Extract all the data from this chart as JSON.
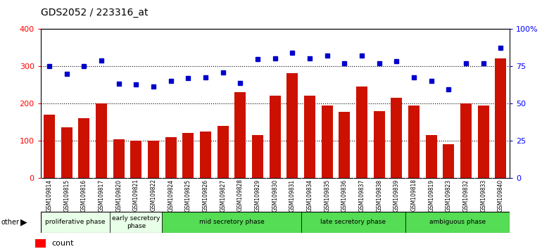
{
  "title": "GDS2052 / 223316_at",
  "samples": [
    "GSM109814",
    "GSM109815",
    "GSM109816",
    "GSM109817",
    "GSM109820",
    "GSM109821",
    "GSM109822",
    "GSM109824",
    "GSM109825",
    "GSM109826",
    "GSM109827",
    "GSM109828",
    "GSM109829",
    "GSM109830",
    "GSM109831",
    "GSM109834",
    "GSM109835",
    "GSM109836",
    "GSM109837",
    "GSM109838",
    "GSM109839",
    "GSM109818",
    "GSM109819",
    "GSM109823",
    "GSM109832",
    "GSM109833",
    "GSM109840"
  ],
  "counts": [
    170,
    135,
    160,
    200,
    103,
    100,
    100,
    110,
    120,
    125,
    140,
    230,
    115,
    220,
    280,
    220,
    195,
    178,
    245,
    180,
    215,
    195,
    115,
    90,
    200,
    195,
    320
  ],
  "percentiles": [
    300,
    278,
    300,
    315,
    252,
    250,
    245,
    260,
    267,
    270,
    283,
    255,
    318,
    320,
    335,
    320,
    327,
    308,
    328,
    308,
    312,
    270,
    260,
    237,
    308,
    308,
    348
  ],
  "phases": [
    {
      "label": "proliferative phase",
      "start": 0,
      "end": 4,
      "color": "#e8ffe8"
    },
    {
      "label": "early secretory\nphase",
      "start": 4,
      "end": 7,
      "color": "#e8ffe8"
    },
    {
      "label": "mid secretory phase",
      "start": 7,
      "end": 15,
      "color": "#55dd55"
    },
    {
      "label": "late secretory phase",
      "start": 15,
      "end": 21,
      "color": "#55dd55"
    },
    {
      "label": "ambiguous phase",
      "start": 21,
      "end": 27,
      "color": "#55dd55"
    }
  ],
  "bar_color": "#cc1100",
  "dot_color": "#0000cc",
  "ylim_left": [
    0,
    400
  ],
  "yticks_left": [
    0,
    100,
    200,
    300,
    400
  ],
  "ytick_labels_right": [
    "0",
    "25",
    "50",
    "75",
    "100%"
  ],
  "grid_lines": [
    100,
    200,
    300
  ],
  "bg_color": "#ffffff"
}
